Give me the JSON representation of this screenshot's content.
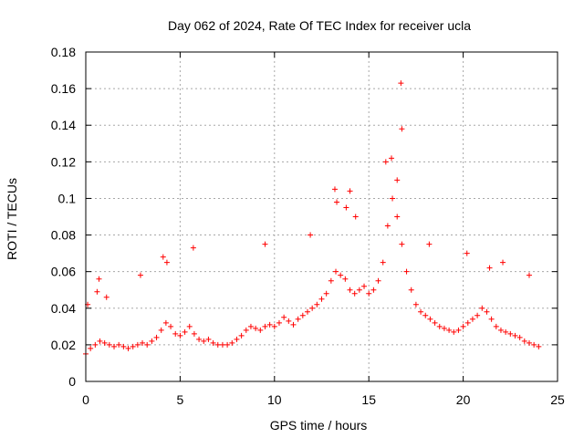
{
  "chart_data": {
    "type": "scatter",
    "title": "Day 062 of 2024, Rate Of TEC Index for receiver ucla",
    "xlabel": "GPS time / hours",
    "ylabel": "ROTI / TECUs",
    "xlim": [
      0,
      25
    ],
    "ylim": [
      0,
      0.18
    ],
    "xticks": [
      "0",
      "5",
      "10",
      "15",
      "20",
      "25"
    ],
    "yticks": [
      "0",
      "0.02",
      "0.04",
      "0.06",
      "0.08",
      "0.1",
      "0.12",
      "0.14",
      "0.16",
      "0.18"
    ],
    "grid": true,
    "marker": "+",
    "color": "#ff0000",
    "series": [
      {
        "x": [
          0.0,
          0.25,
          0.5,
          0.75,
          1.0,
          1.25,
          1.5,
          1.75,
          2.0,
          2.25,
          2.5,
          2.75,
          3.0,
          3.25,
          3.5,
          3.75,
          4.0,
          4.25,
          4.5,
          4.75,
          5.0,
          5.25,
          5.5,
          5.75,
          6.0,
          6.25,
          6.5,
          6.75,
          7.0,
          7.25,
          7.5,
          7.75,
          8.0,
          8.25,
          8.5,
          8.75,
          9.0,
          9.25,
          9.5,
          9.75,
          10.0,
          10.25,
          10.5,
          10.75,
          11.0,
          11.25,
          11.5,
          11.75,
          12.0,
          12.25,
          12.5,
          12.75,
          13.0,
          13.25,
          13.5,
          13.75,
          14.0,
          14.25,
          14.5,
          14.75,
          15.0,
          15.25,
          15.5,
          15.75,
          16.0,
          16.25,
          16.5,
          16.75,
          17.0,
          17.25,
          17.5,
          17.75,
          18.0,
          18.25,
          18.5,
          18.75,
          19.0,
          19.25,
          19.5,
          19.75,
          20.0,
          20.25,
          20.5,
          20.75,
          21.0,
          21.25,
          21.5,
          21.75,
          22.0,
          22.25,
          22.5,
          22.75,
          23.0,
          23.25,
          23.5,
          23.75,
          24.0,
          0.1,
          0.6,
          0.7,
          1.1,
          2.9,
          4.1,
          4.3,
          5.7,
          9.5,
          11.9,
          13.2,
          13.3,
          13.8,
          14.0,
          14.3,
          15.9,
          16.2,
          16.5,
          16.7,
          16.75,
          18.2,
          20.2,
          21.4,
          22.1,
          23.5
        ],
        "y": [
          0.015,
          0.018,
          0.02,
          0.022,
          0.021,
          0.02,
          0.019,
          0.02,
          0.019,
          0.018,
          0.019,
          0.02,
          0.021,
          0.02,
          0.022,
          0.024,
          0.028,
          0.032,
          0.03,
          0.026,
          0.025,
          0.027,
          0.03,
          0.026,
          0.023,
          0.022,
          0.023,
          0.021,
          0.02,
          0.02,
          0.02,
          0.021,
          0.023,
          0.025,
          0.028,
          0.03,
          0.029,
          0.028,
          0.03,
          0.031,
          0.03,
          0.032,
          0.035,
          0.033,
          0.031,
          0.034,
          0.036,
          0.038,
          0.04,
          0.042,
          0.045,
          0.048,
          0.055,
          0.06,
          0.058,
          0.056,
          0.05,
          0.048,
          0.05,
          0.052,
          0.048,
          0.05,
          0.055,
          0.065,
          0.085,
          0.1,
          0.09,
          0.075,
          0.06,
          0.05,
          0.042,
          0.038,
          0.036,
          0.034,
          0.032,
          0.03,
          0.029,
          0.028,
          0.027,
          0.028,
          0.03,
          0.032,
          0.034,
          0.036,
          0.04,
          0.038,
          0.034,
          0.03,
          0.028,
          0.027,
          0.026,
          0.025,
          0.024,
          0.022,
          0.021,
          0.02,
          0.019,
          0.042,
          0.049,
          0.056,
          0.046,
          0.058,
          0.068,
          0.065,
          0.073,
          0.075,
          0.08,
          0.105,
          0.098,
          0.095,
          0.104,
          0.09,
          0.12,
          0.122,
          0.11,
          0.163,
          0.138,
          0.075,
          0.07,
          0.062,
          0.065,
          0.058
        ]
      }
    ]
  }
}
